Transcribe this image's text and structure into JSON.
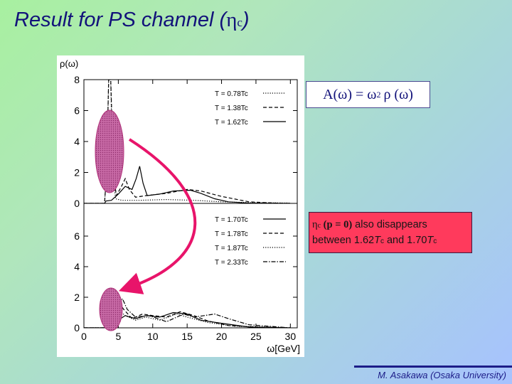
{
  "title": {
    "prefix": "Result for PS channel (",
    "eta": "η",
    "sub": "c",
    "suffix": ")"
  },
  "formula": {
    "lhs": "A(ω) = ω",
    "power": "2",
    "rhs": "ρ (ω)"
  },
  "note": {
    "line1_eta": "η",
    "line1_sub": "c",
    "line1_math": " (p = 0)",
    "line1_text": " also disappears",
    "line2_a": "between 1.62",
    "line2_T1": "T",
    "line2_c1": "c",
    "line2_b": " and 1.70",
    "line2_T2": "T",
    "line2_c2": "c"
  },
  "credit": "M. Asakawa (Osaka University)",
  "colors": {
    "title": "#12127a",
    "note_background": "#ff3a5c",
    "marker": "#b0327a",
    "arrow": "#e8146a",
    "footer": "#1c1c88"
  },
  "chart_data": {
    "type": "line",
    "xlabel": "ω[GeV]",
    "ylabel": "ρ(ω)",
    "x_ticks": [
      0,
      5,
      10,
      15,
      20,
      25,
      30
    ],
    "xlim": [
      0,
      31
    ],
    "panels": [
      {
        "ylim": [
          0,
          8
        ],
        "y_ticks": [
          "8",
          "6",
          "4",
          "2",
          "0"
        ],
        "series": [
          {
            "name": "T = 0.78Tc",
            "style": "dotted",
            "points": [
              [
                0,
                0
              ],
              [
                3.0,
                0
              ],
              [
                3.3,
                2
              ],
              [
                3.6,
                8
              ],
              [
                3.9,
                8
              ],
              [
                4.2,
                2
              ],
              [
                4.6,
                0.3
              ],
              [
                5.5,
                0.2
              ],
              [
                8,
                0.2
              ],
              [
                12,
                0.25
              ],
              [
                16,
                0.2
              ],
              [
                20,
                0.1
              ],
              [
                24,
                0.05
              ],
              [
                28,
                0.03
              ],
              [
                30,
                0.02
              ]
            ]
          },
          {
            "name": "T = 1.38Tc",
            "style": "dashed",
            "points": [
              [
                0,
                0
              ],
              [
                3.0,
                0
              ],
              [
                3.3,
                2
              ],
              [
                3.6,
                8
              ],
              [
                3.9,
                8
              ],
              [
                4.3,
                2
              ],
              [
                4.7,
                0.5
              ],
              [
                5.4,
                1.05
              ],
              [
                6,
                1.6
              ],
              [
                6.6,
                0.9
              ],
              [
                7.5,
                0.4
              ],
              [
                9,
                0.5
              ],
              [
                12,
                0.65
              ],
              [
                15,
                0.9
              ],
              [
                17,
                0.8
              ],
              [
                20,
                0.45
              ],
              [
                24,
                0.1
              ],
              [
                28,
                0.02
              ],
              [
                30,
                0
              ]
            ]
          },
          {
            "name": "T = 1.62Tc",
            "style": "solid",
            "points": [
              [
                0,
                0
              ],
              [
                3.0,
                0
              ],
              [
                3.2,
                0.15
              ],
              [
                4,
                0.2
              ],
              [
                5,
                0.6
              ],
              [
                6,
                1.1
              ],
              [
                7,
                0.9
              ],
              [
                7.6,
                1.6
              ],
              [
                8.1,
                2.4
              ],
              [
                8.6,
                1.3
              ],
              [
                9.2,
                0.5
              ],
              [
                11,
                0.6
              ],
              [
                13,
                0.8
              ],
              [
                15.5,
                0.85
              ],
              [
                17,
                0.65
              ],
              [
                19,
                0.3
              ],
              [
                21,
                0.1
              ],
              [
                24,
                0.02
              ],
              [
                30,
                0
              ]
            ]
          }
        ]
      },
      {
        "ylim": [
          0,
          7
        ],
        "y_ticks": [
          "6",
          "4",
          "2",
          "0"
        ],
        "series": [
          {
            "name": "T = 1.70Tc",
            "style": "solid",
            "points": [
              [
                0,
                0
              ],
              [
                3,
                0
              ],
              [
                4,
                0.2
              ],
              [
                5,
                0.5
              ],
              [
                6,
                0.8
              ],
              [
                7.5,
                0.6
              ],
              [
                9,
                0.8
              ],
              [
                11,
                0.7
              ],
              [
                13,
                1.0
              ],
              [
                15,
                0.9
              ],
              [
                17,
                0.5
              ],
              [
                20,
                0.3
              ],
              [
                24,
                0.05
              ],
              [
                30,
                0
              ]
            ]
          },
          {
            "name": "T = 1.78Tc",
            "style": "dashed",
            "points": [
              [
                0,
                0
              ],
              [
                3,
                0
              ],
              [
                4,
                1.0
              ],
              [
                5,
                1.7
              ],
              [
                5.8,
                1.2
              ],
              [
                7,
                0.6
              ],
              [
                8.5,
                0.9
              ],
              [
                10,
                0.8
              ],
              [
                12,
                0.7
              ],
              [
                14,
                1.05
              ],
              [
                16,
                0.8
              ],
              [
                18,
                0.45
              ],
              [
                21,
                0.15
              ],
              [
                25,
                0.05
              ],
              [
                30,
                0
              ]
            ]
          },
          {
            "name": "T = 1.87Tc",
            "style": "dotted",
            "points": [
              [
                0,
                0
              ],
              [
                3,
                0
              ],
              [
                4,
                0.5
              ],
              [
                5.2,
                1.1
              ],
              [
                6,
                0.8
              ],
              [
                7.5,
                0.5
              ],
              [
                9,
                0.7
              ],
              [
                11,
                0.5
              ],
              [
                13.5,
                0.9
              ],
              [
                15,
                0.7
              ],
              [
                18,
                0.35
              ],
              [
                22,
                0.1
              ],
              [
                27,
                0.05
              ],
              [
                30,
                0
              ]
            ]
          },
          {
            "name": "T = 2.33Tc",
            "style": "dashdot",
            "points": [
              [
                0,
                0
              ],
              [
                3,
                0
              ],
              [
                4,
                0.3
              ],
              [
                5,
                1.5
              ],
              [
                5.6,
                1.9
              ],
              [
                6.3,
                1.2
              ],
              [
                7.5,
                0.7
              ],
              [
                9.5,
                0.8
              ],
              [
                12,
                0.4
              ],
              [
                14.5,
                0.9
              ],
              [
                16,
                0.7
              ],
              [
                19,
                0.9
              ],
              [
                21,
                0.6
              ],
              [
                24,
                0.2
              ],
              [
                27,
                0.1
              ],
              [
                30,
                0
              ]
            ]
          }
        ]
      }
    ]
  }
}
